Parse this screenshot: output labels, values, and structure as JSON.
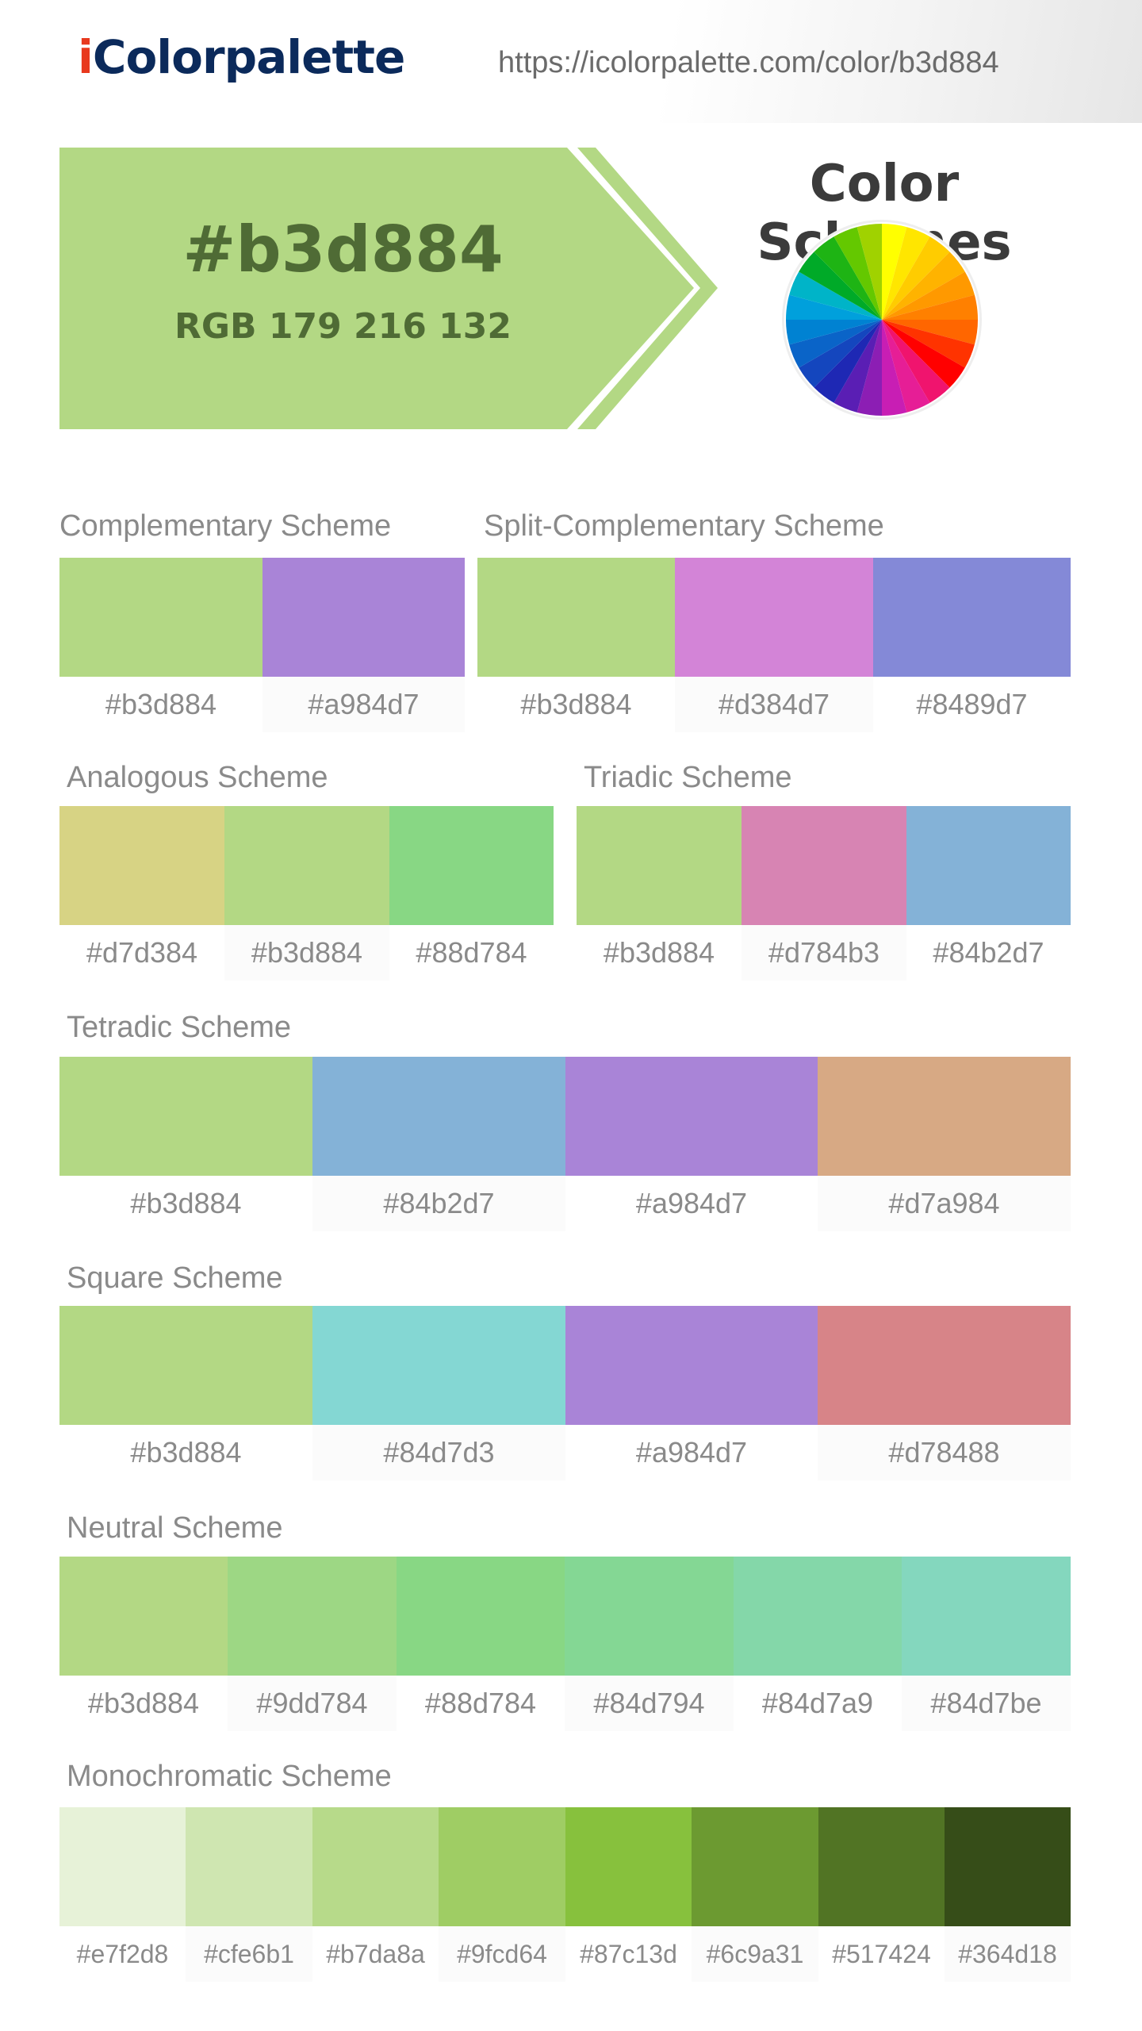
{
  "header": {
    "logo_initial": "i",
    "logo_rest": "Colorpalette",
    "url": "https://icolorpalette.com/color/b3d884"
  },
  "hero": {
    "hex": "#b3d884",
    "rgb": "RGB 179 216 132",
    "color": "#b3d884"
  },
  "color_schemes_title": "Color Schemes",
  "schemes": {
    "complementary": {
      "title": "Complementary Scheme",
      "colors": [
        "#b3d884",
        "#a984d7"
      ]
    },
    "split": {
      "title": "Split-Complementary Scheme",
      "colors": [
        "#b3d884",
        "#d384d7",
        "#8489d7"
      ]
    },
    "analogous": {
      "title": "Analogous Scheme",
      "colors": [
        "#d7d384",
        "#b3d884",
        "#88d784"
      ]
    },
    "triadic": {
      "title": "Triadic Scheme",
      "colors": [
        "#b3d884",
        "#d784b3",
        "#84b2d7"
      ]
    },
    "tetradic": {
      "title": "Tetradic Scheme",
      "colors": [
        "#b3d884",
        "#84b2d7",
        "#a984d7",
        "#d7a984"
      ]
    },
    "square": {
      "title": "Square Scheme",
      "colors": [
        "#b3d884",
        "#84d7d3",
        "#a984d7",
        "#d78488"
      ]
    },
    "neutral": {
      "title": "Neutral Scheme",
      "colors": [
        "#b3d884",
        "#9dd784",
        "#88d784",
        "#84d794",
        "#84d7a9",
        "#84d7be"
      ]
    },
    "monochromatic": {
      "title": "Monochromatic Scheme",
      "colors": [
        "#e7f2d8",
        "#cfe6b1",
        "#b7da8a",
        "#9fcd64",
        "#87c13d",
        "#6c9a31",
        "#517424",
        "#364d18"
      ]
    }
  }
}
